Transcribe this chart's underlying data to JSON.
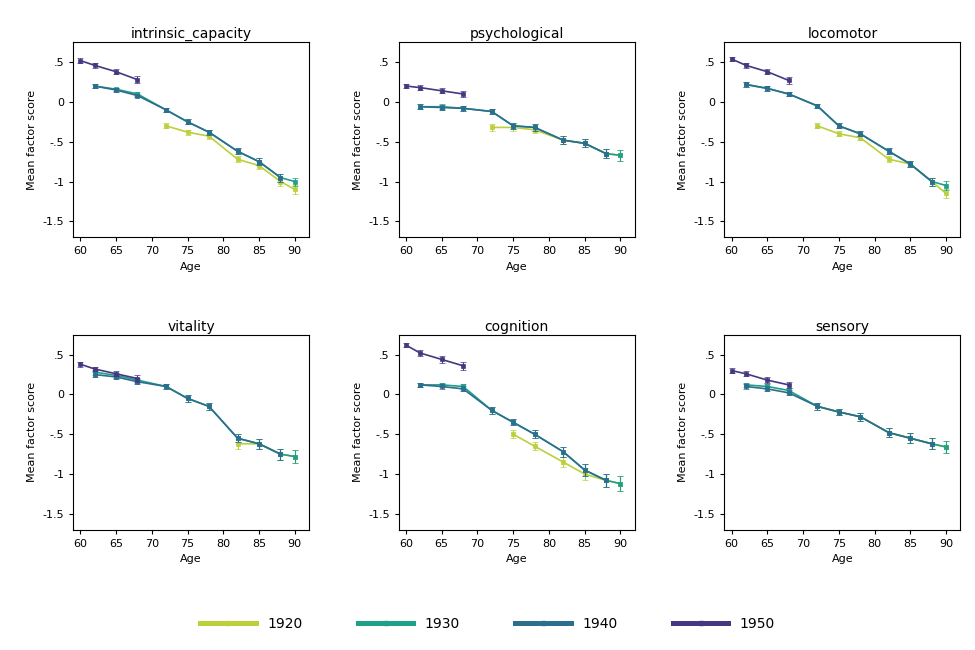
{
  "titles": [
    "intrinsic_capacity",
    "psychological",
    "locomotor",
    "vitality",
    "cognition",
    "sensory"
  ],
  "ylabel": "Mean factor score",
  "xlabel": "Age",
  "ylim": [
    -1.7,
    0.75
  ],
  "xlim": [
    59,
    92
  ],
  "xticks": [
    60,
    65,
    70,
    75,
    80,
    85,
    90
  ],
  "yticks": [
    -1.5,
    -1.0,
    -0.5,
    0.0,
    0.5
  ],
  "yticklabels": [
    "-1.5",
    "-1",
    "-.5",
    "0",
    ".5"
  ],
  "cohorts": [
    "1920",
    "1930",
    "1940",
    "1950"
  ],
  "colors": [
    "#bdcf3a",
    "#1fa088",
    "#2d6e8e",
    "#453781"
  ],
  "series": {
    "intrinsic_capacity": {
      "1920": {
        "ages": [
          72,
          75,
          78,
          82,
          85,
          88,
          90
        ],
        "values": [
          -0.3,
          -0.38,
          -0.43,
          -0.72,
          -0.8,
          -1.0,
          -1.1
        ],
        "errors": [
          0.03,
          0.03,
          0.03,
          0.04,
          0.04,
          0.05,
          0.06
        ]
      },
      "1930": {
        "ages": [
          62,
          65,
          68,
          72,
          75,
          78,
          82,
          85,
          88,
          90
        ],
        "values": [
          0.2,
          0.16,
          0.1,
          -0.1,
          -0.25,
          -0.38,
          -0.62,
          -0.75,
          -0.95,
          -1.0
        ],
        "errors": [
          0.02,
          0.02,
          0.02,
          0.03,
          0.03,
          0.03,
          0.04,
          0.04,
          0.05,
          0.05
        ]
      },
      "1940": {
        "ages": [
          62,
          65,
          68,
          72,
          75,
          78,
          82,
          85,
          88
        ],
        "values": [
          0.2,
          0.15,
          0.08,
          -0.1,
          -0.25,
          -0.38,
          -0.62,
          -0.75,
          -0.95
        ],
        "errors": [
          0.02,
          0.02,
          0.02,
          0.03,
          0.03,
          0.03,
          0.04,
          0.04,
          0.05
        ]
      },
      "1950": {
        "ages": [
          60,
          62,
          65,
          68
        ],
        "values": [
          0.52,
          0.46,
          0.38,
          0.28
        ],
        "errors": [
          0.03,
          0.03,
          0.03,
          0.04
        ]
      }
    },
    "psychological": {
      "1920": {
        "ages": [
          72,
          75,
          78,
          82,
          85,
          88,
          90
        ],
        "values": [
          -0.32,
          -0.32,
          -0.35,
          -0.48,
          -0.52,
          -0.65,
          -0.67
        ],
        "errors": [
          0.04,
          0.04,
          0.04,
          0.05,
          0.05,
          0.06,
          0.07
        ]
      },
      "1930": {
        "ages": [
          62,
          65,
          68,
          72,
          75,
          78,
          82,
          85,
          88,
          90
        ],
        "values": [
          -0.06,
          -0.06,
          -0.08,
          -0.12,
          -0.3,
          -0.32,
          -0.48,
          -0.52,
          -0.65,
          -0.67
        ],
        "errors": [
          0.03,
          0.03,
          0.03,
          0.03,
          0.04,
          0.04,
          0.05,
          0.05,
          0.06,
          0.07
        ]
      },
      "1940": {
        "ages": [
          62,
          65,
          68,
          72,
          75,
          78,
          82,
          85,
          88
        ],
        "values": [
          -0.06,
          -0.07,
          -0.08,
          -0.12,
          -0.3,
          -0.32,
          -0.48,
          -0.52,
          -0.65
        ],
        "errors": [
          0.03,
          0.03,
          0.03,
          0.03,
          0.04,
          0.04,
          0.05,
          0.05,
          0.06
        ]
      },
      "1950": {
        "ages": [
          60,
          62,
          65,
          68
        ],
        "values": [
          0.2,
          0.18,
          0.14,
          0.1
        ],
        "errors": [
          0.03,
          0.03,
          0.03,
          0.04
        ]
      }
    },
    "locomotor": {
      "1920": {
        "ages": [
          72,
          75,
          78,
          82,
          85,
          88,
          90
        ],
        "values": [
          -0.3,
          -0.4,
          -0.45,
          -0.72,
          -0.78,
          -1.0,
          -1.15
        ],
        "errors": [
          0.03,
          0.03,
          0.03,
          0.04,
          0.04,
          0.05,
          0.06
        ]
      },
      "1930": {
        "ages": [
          62,
          65,
          68,
          72,
          75,
          78,
          82,
          85,
          88,
          90
        ],
        "values": [
          0.22,
          0.17,
          0.1,
          -0.05,
          -0.3,
          -0.4,
          -0.62,
          -0.78,
          -1.0,
          -1.05
        ],
        "errors": [
          0.03,
          0.03,
          0.03,
          0.03,
          0.03,
          0.03,
          0.04,
          0.04,
          0.05,
          0.06
        ]
      },
      "1940": {
        "ages": [
          62,
          65,
          68,
          72,
          75,
          78,
          82,
          85,
          88
        ],
        "values": [
          0.22,
          0.17,
          0.1,
          -0.05,
          -0.3,
          -0.4,
          -0.62,
          -0.78,
          -1.0
        ],
        "errors": [
          0.03,
          0.03,
          0.03,
          0.03,
          0.03,
          0.03,
          0.04,
          0.04,
          0.05
        ]
      },
      "1950": {
        "ages": [
          60,
          62,
          65,
          68
        ],
        "values": [
          0.54,
          0.46,
          0.38,
          0.27
        ],
        "errors": [
          0.03,
          0.03,
          0.03,
          0.04
        ]
      }
    },
    "vitality": {
      "1920": {
        "ages": [
          82,
          85,
          88,
          90
        ],
        "values": [
          -0.62,
          -0.62,
          -0.75,
          -0.78
        ],
        "errors": [
          0.06,
          0.06,
          0.07,
          0.08
        ]
      },
      "1930": {
        "ages": [
          62,
          65,
          68,
          72,
          75,
          78,
          82,
          85,
          88,
          90
        ],
        "values": [
          0.28,
          0.24,
          0.18,
          0.1,
          -0.05,
          -0.15,
          -0.55,
          -0.62,
          -0.75,
          -0.78
        ],
        "errors": [
          0.03,
          0.03,
          0.03,
          0.03,
          0.04,
          0.04,
          0.05,
          0.06,
          0.07,
          0.08
        ]
      },
      "1940": {
        "ages": [
          62,
          65,
          68,
          72,
          75,
          78,
          82,
          85,
          88
        ],
        "values": [
          0.25,
          0.22,
          0.16,
          0.1,
          -0.05,
          -0.15,
          -0.55,
          -0.62,
          -0.75
        ],
        "errors": [
          0.03,
          0.03,
          0.03,
          0.03,
          0.04,
          0.04,
          0.05,
          0.06,
          0.07
        ]
      },
      "1950": {
        "ages": [
          60,
          62,
          65,
          68
        ],
        "values": [
          0.38,
          0.32,
          0.26,
          0.2
        ],
        "errors": [
          0.03,
          0.03,
          0.03,
          0.04
        ]
      }
    },
    "cognition": {
      "1920": {
        "ages": [
          75,
          78,
          82,
          85,
          88,
          90
        ],
        "values": [
          -0.5,
          -0.65,
          -0.85,
          -1.0,
          -1.08,
          -1.12
        ],
        "errors": [
          0.05,
          0.05,
          0.06,
          0.07,
          0.08,
          0.09
        ]
      },
      "1930": {
        "ages": [
          62,
          65,
          68,
          72,
          75,
          78,
          82,
          85,
          88,
          90
        ],
        "values": [
          0.12,
          0.12,
          0.1,
          -0.2,
          -0.35,
          -0.5,
          -0.72,
          -0.95,
          -1.08,
          -1.12
        ],
        "errors": [
          0.03,
          0.03,
          0.03,
          0.04,
          0.04,
          0.05,
          0.06,
          0.07,
          0.08,
          0.09
        ]
      },
      "1940": {
        "ages": [
          62,
          65,
          68,
          72,
          75,
          78,
          82,
          85,
          88
        ],
        "values": [
          0.12,
          0.1,
          0.07,
          -0.2,
          -0.35,
          -0.5,
          -0.72,
          -0.95,
          -1.08
        ],
        "errors": [
          0.03,
          0.03,
          0.03,
          0.04,
          0.04,
          0.05,
          0.06,
          0.07,
          0.08
        ]
      },
      "1950": {
        "ages": [
          60,
          62,
          65,
          68
        ],
        "values": [
          0.62,
          0.52,
          0.44,
          0.36
        ],
        "errors": [
          0.03,
          0.04,
          0.04,
          0.05
        ]
      }
    },
    "sensory": {
      "1920": {
        "ages": [
          72,
          75,
          78,
          82,
          85,
          88,
          90
        ],
        "values": [
          -0.15,
          -0.22,
          -0.28,
          -0.48,
          -0.55,
          -0.62,
          -0.66
        ],
        "errors": [
          0.04,
          0.04,
          0.05,
          0.06,
          0.06,
          0.07,
          0.08
        ]
      },
      "1930": {
        "ages": [
          62,
          65,
          68,
          72,
          75,
          78,
          82,
          85,
          88,
          90
        ],
        "values": [
          0.12,
          0.1,
          0.05,
          -0.15,
          -0.22,
          -0.28,
          -0.48,
          -0.55,
          -0.62,
          -0.66
        ],
        "errors": [
          0.03,
          0.03,
          0.03,
          0.04,
          0.04,
          0.05,
          0.06,
          0.06,
          0.07,
          0.08
        ]
      },
      "1940": {
        "ages": [
          62,
          65,
          68,
          72,
          75,
          78,
          82,
          85,
          88
        ],
        "values": [
          0.1,
          0.07,
          0.02,
          -0.15,
          -0.22,
          -0.28,
          -0.48,
          -0.55,
          -0.62
        ],
        "errors": [
          0.03,
          0.03,
          0.03,
          0.04,
          0.04,
          0.05,
          0.06,
          0.06,
          0.07
        ]
      },
      "1950": {
        "ages": [
          60,
          62,
          65,
          68
        ],
        "values": [
          0.3,
          0.26,
          0.18,
          0.12
        ],
        "errors": [
          0.03,
          0.03,
          0.04,
          0.04
        ]
      }
    }
  },
  "background_color": "#ffffff",
  "marker": "s",
  "markersize": 3.5,
  "linewidth": 1.2,
  "capsize": 2,
  "elinewidth": 0.8,
  "title_fontsize": 10,
  "label_fontsize": 8,
  "tick_fontsize": 8,
  "legend_fontsize": 10
}
